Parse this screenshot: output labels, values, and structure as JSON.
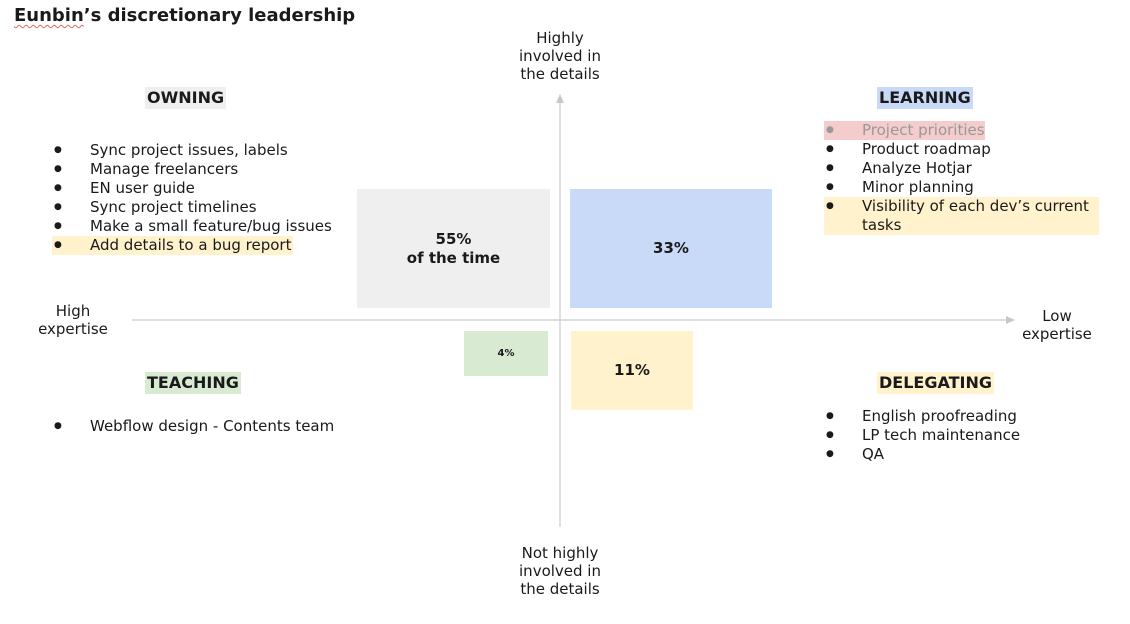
{
  "title": {
    "name": "Eunbin",
    "rest": "’s discretionary leadership"
  },
  "axes": {
    "top": [
      "Highly",
      "involved in",
      "the details"
    ],
    "bottom": [
      "Not highly",
      "involved in",
      "the details"
    ],
    "left": [
      "High",
      "expertise"
    ],
    "right": [
      "Low",
      "expertise"
    ]
  },
  "quadrants": {
    "owning": {
      "heading": "OWNING",
      "color": "#efefef",
      "percent_line1": "55%",
      "percent_line2": "of the time",
      "items": [
        "Sync project issues, labels",
        "Manage freelancers",
        "EN user guide",
        "Sync project timelines",
        "Make a small feature/bug issues",
        "Add details to a bug report"
      ]
    },
    "learning": {
      "heading": "LEARNING",
      "color": "#c9daf8",
      "percent": "33%",
      "items": [
        "Project priorities",
        "Product roadmap",
        "Analyze Hotjar",
        "Minor planning",
        "Visibility of each dev’s current tasks"
      ]
    },
    "teaching": {
      "heading": "TEACHING",
      "color": "#d9ead3",
      "percent": "4%",
      "items": [
        "Webflow design - Contents team"
      ]
    },
    "delegating": {
      "heading": "DELEGATING",
      "color": "#fff2cc",
      "percent": "11%",
      "items": [
        "English proofreading",
        "LP tech maintenance",
        "QA"
      ]
    }
  },
  "highlight_colors": {
    "yellow": "#fff2cc",
    "red": "#f4cccc"
  }
}
